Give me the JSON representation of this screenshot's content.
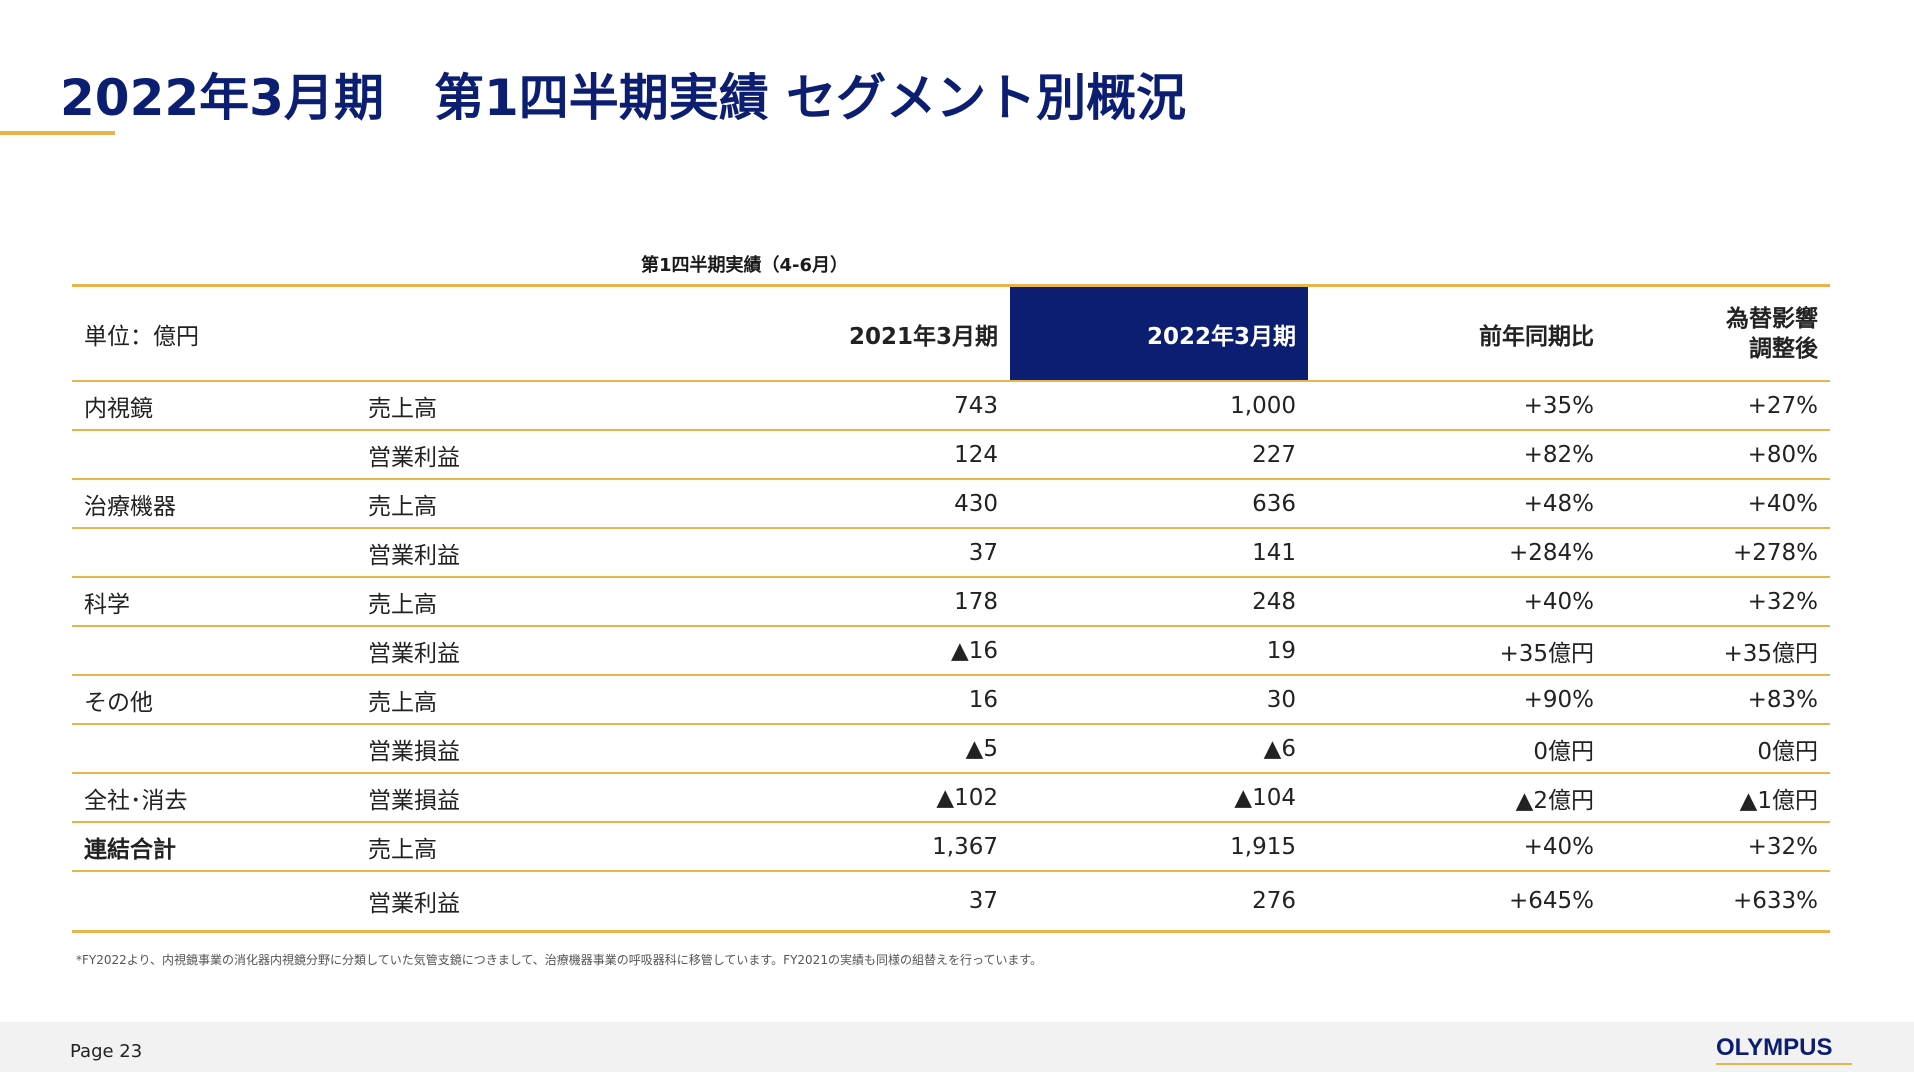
{
  "title": "2022年3月期　第1四半期実績 セグメント別概況",
  "table": {
    "caption": "第1四半期実績（4-6月）",
    "unit_label": "単位：億円",
    "col_prev": "2021年3月期",
    "col_curr": "2022年3月期",
    "col_yoy": "前年同期比",
    "col_fx_line1": "為替影響",
    "col_fx_line2": "調整後",
    "rows": [
      {
        "segment": "内視鏡",
        "metric": "売上高",
        "prev": "743",
        "curr": "1,000",
        "yoy": "+35%",
        "fx": "+27%"
      },
      {
        "segment": "",
        "metric": "営業利益",
        "prev": "124",
        "curr": "227",
        "yoy": "+82%",
        "fx": "+80%"
      },
      {
        "segment": "治療機器",
        "metric": "売上高",
        "prev": "430",
        "curr": "636",
        "yoy": "+48%",
        "fx": "+40%"
      },
      {
        "segment": "",
        "metric": "営業利益",
        "prev": "37",
        "curr": "141",
        "yoy": "+284%",
        "fx": "+278%"
      },
      {
        "segment": "科学",
        "metric": "売上高",
        "prev": "178",
        "curr": "248",
        "yoy": "+40%",
        "fx": "+32%"
      },
      {
        "segment": "",
        "metric": "営業利益",
        "prev": "▲16",
        "curr": "19",
        "yoy": "+35億円",
        "fx": "+35億円"
      },
      {
        "segment": "その他",
        "metric": "売上高",
        "prev": "16",
        "curr": "30",
        "yoy": "+90%",
        "fx": "+83%"
      },
      {
        "segment": "",
        "metric": "営業損益",
        "prev": "▲5",
        "curr": "▲6",
        "yoy": "0億円",
        "fx": "0億円"
      },
      {
        "segment": "全社･消去",
        "metric": "営業損益",
        "prev": "▲102",
        "curr": "▲104",
        "yoy": "▲2億円",
        "fx": "▲1億円"
      },
      {
        "segment": "連結合計",
        "metric": "売上高",
        "prev": "1,367",
        "curr": "1,915",
        "yoy": "+40%",
        "fx": "+32%"
      },
      {
        "segment": "",
        "metric": "営業利益",
        "prev": "37",
        "curr": "276",
        "yoy": "+645%",
        "fx": "+633%"
      }
    ]
  },
  "footnote": "*FY2022より、内視鏡事業の消化器内視鏡分野に分類していた気管支鏡につきまして、治療機器事業の呼吸器科に移管しています。FY2021の実績も同様の組替えを行っています。",
  "footer": {
    "page_label": "Page 23",
    "logo": "OLYMPUS"
  },
  "colors": {
    "navy": "#0c1e72",
    "gold": "#e8b44c"
  }
}
